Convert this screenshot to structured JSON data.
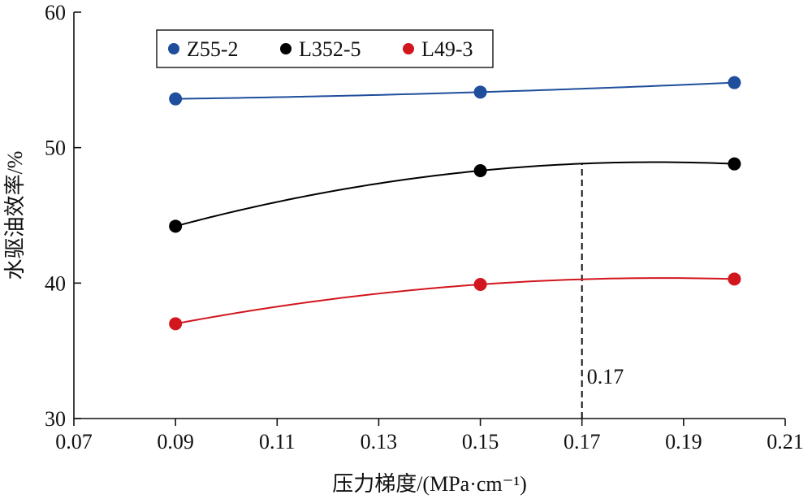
{
  "chart_data": {
    "type": "line",
    "xlabel": "压力梯度/(MPa·cm⁻¹)",
    "ylabel": "水驱油效率/%",
    "xlim": [
      0.07,
      0.21
    ],
    "ylim": [
      30,
      60
    ],
    "xticks": [
      "0.07",
      "0.09",
      "0.11",
      "0.13",
      "0.15",
      "0.17",
      "0.19",
      "0.21"
    ],
    "yticks": [
      "30",
      "40",
      "50",
      "60"
    ],
    "grid": false,
    "legend_position": "top-left",
    "series": [
      {
        "name": "Z55-2",
        "color": "#1f4e9c",
        "x": [
          0.09,
          0.15,
          0.2
        ],
        "values": [
          53.6,
          54.1,
          54.8
        ]
      },
      {
        "name": "L352-5",
        "color": "#000000",
        "x": [
          0.09,
          0.15,
          0.2
        ],
        "values": [
          44.2,
          48.3,
          48.8
        ]
      },
      {
        "name": "L49-3",
        "color": "#d2161e",
        "x": [
          0.09,
          0.15,
          0.2
        ],
        "values": [
          37.0,
          39.9,
          40.3
        ]
      }
    ],
    "annotations": [
      {
        "text": "0.17",
        "x": 0.17,
        "style": "dashed-vertical-line"
      }
    ]
  }
}
